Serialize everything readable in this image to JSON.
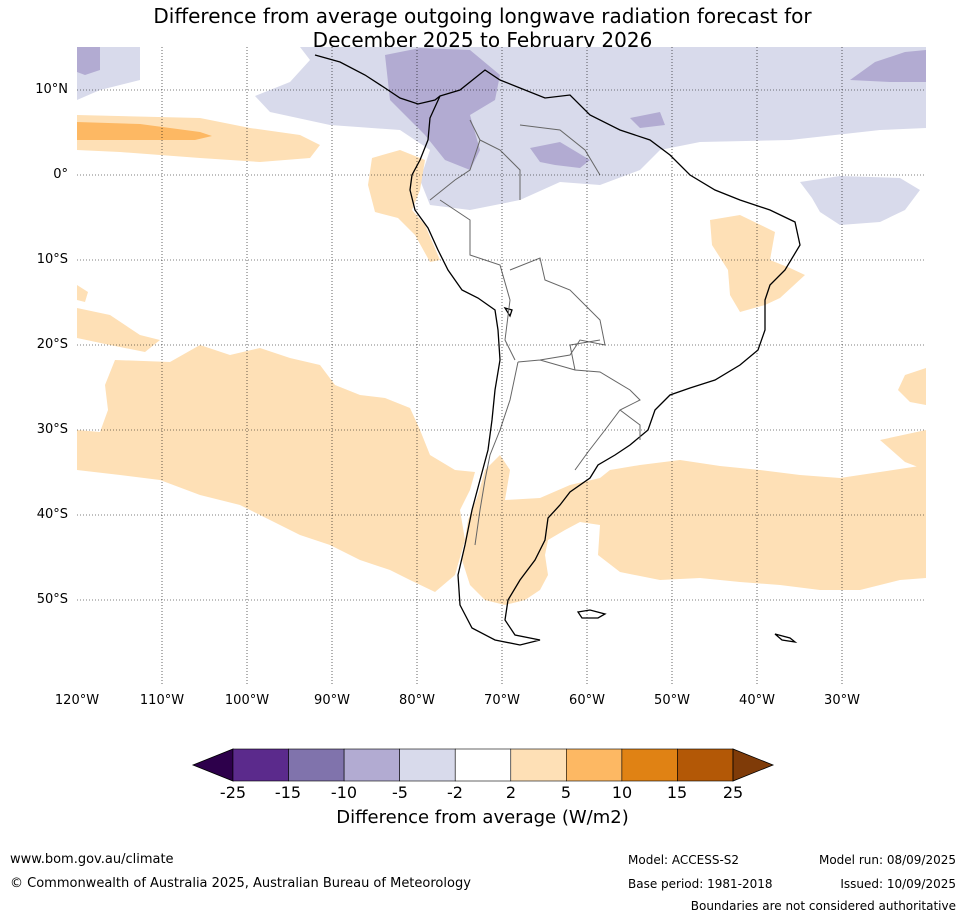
{
  "title_line1": "Difference from average outgoing longwave radiation forecast for",
  "title_line2": "December 2025 to February 2026",
  "lat_labels": [
    "10°N",
    "0°",
    "10°S",
    "20°S",
    "30°S",
    "40°S",
    "50°S"
  ],
  "lon_labels": [
    "120°W",
    "110°W",
    "100°W",
    "90°W",
    "80°W",
    "70°W",
    "60°W",
    "50°W",
    "40°W",
    "30°W"
  ],
  "colorbar": {
    "ticks": [
      "-25",
      "-15",
      "-10",
      "-5",
      "-2",
      "2",
      "5",
      "10",
      "15",
      "25"
    ],
    "colors": [
      "#2d004b",
      "#5b2a8c",
      "#8073ac",
      "#b2abd2",
      "#d8daeb",
      "#ffffff",
      "#fee0b6",
      "#fdb863",
      "#e08214",
      "#b35806",
      "#7f3b08"
    ],
    "label": "Difference from average (W/m2)"
  },
  "footer": {
    "website": "www.bom.gov.au/climate",
    "copyright": "© Commonwealth of Australia 2025, Australian Bureau of Meteorology",
    "model": "Model: ACCESS-S2",
    "base_period": "Base period: 1981-2018",
    "model_run": "Model run: 08/09/2025",
    "issued": "Issued: 10/09/2025",
    "disclaimer": "Boundaries are not considered authoritative"
  }
}
